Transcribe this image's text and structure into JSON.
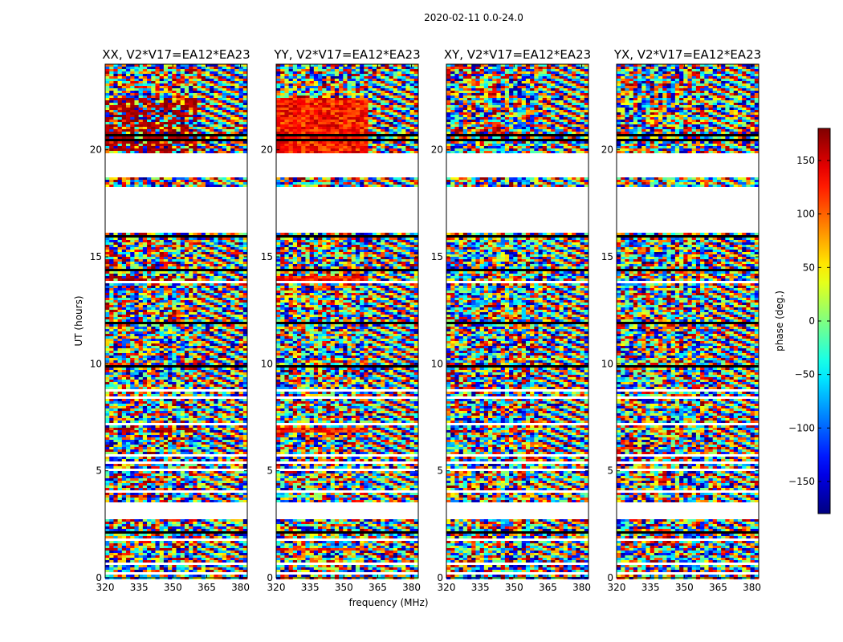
{
  "chart_data": {
    "type": "heatmap",
    "suptitle": "2020-02-11 0.0-24.0",
    "xlabel": "frequency (MHz)",
    "ylabel": "UT (hours)",
    "xlim": [
      320,
      383
    ],
    "ylim": [
      0,
      24
    ],
    "xticks": [
      320,
      335,
      350,
      365,
      380
    ],
    "xtick_labels": [
      "320",
      "335",
      "350",
      "365",
      "380"
    ],
    "yticks": [
      0,
      5,
      10,
      15,
      20
    ],
    "ytick_labels": [
      "0",
      "5",
      "10",
      "15",
      "20"
    ],
    "panels": [
      {
        "title": "XX, V2*V17=EA12*EA23",
        "pol": "XX"
      },
      {
        "title": "YY, V2*V17=EA12*EA23",
        "pol": "YY"
      },
      {
        "title": "XY, V2*V17=EA12*EA23",
        "pol": "XY"
      },
      {
        "title": "YX, V2*V17=EA12*EA23",
        "pol": "YX"
      }
    ],
    "data_gaps_ut_hours": [
      [
        16.1,
        18.3
      ],
      [
        3.6,
        2.8
      ],
      [
        19.1,
        19.8
      ]
    ],
    "colorbar": {
      "label": "phase (deg.)",
      "range": [
        -180,
        180
      ],
      "ticks": [
        150,
        100,
        50,
        0,
        -50,
        -100,
        -150
      ],
      "tick_labels": [
        "150",
        "100",
        "50",
        "0",
        "−50",
        "−100",
        "−150"
      ],
      "colormap": "jet"
    }
  }
}
